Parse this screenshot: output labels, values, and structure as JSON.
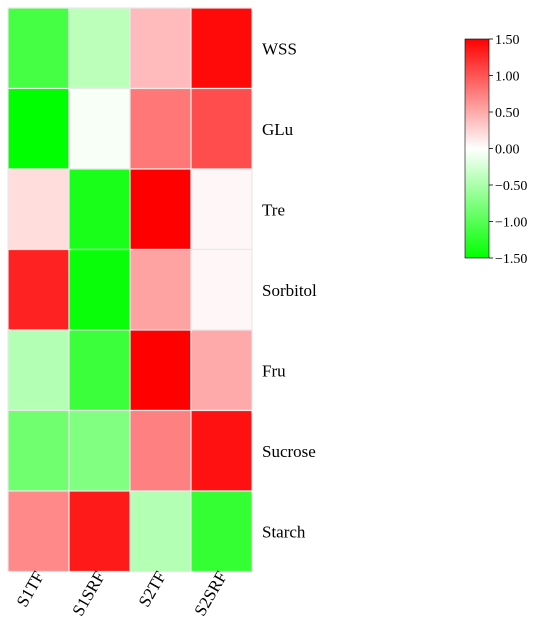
{
  "chart_data": {
    "type": "heatmap",
    "columns": [
      "S1TF",
      "S1SRF",
      "S2TF",
      "S2SRF"
    ],
    "rows": [
      "WSS",
      "GLu",
      "Tre",
      "Sorbitol",
      "Fru",
      "Sucrose",
      "Starch"
    ],
    "values": [
      [
        -1.1,
        -0.4,
        0.4,
        1.45
      ],
      [
        -1.5,
        -0.05,
        0.8,
        1.05
      ],
      [
        0.2,
        -1.35,
        1.5,
        0.05
      ],
      [
        1.3,
        -1.45,
        0.55,
        0.05
      ],
      [
        -0.45,
        -1.15,
        1.5,
        0.5
      ],
      [
        -0.85,
        -0.75,
        0.75,
        1.4
      ],
      [
        0.7,
        1.35,
        -0.45,
        -1.2
      ]
    ],
    "color_scale": {
      "min": -1.5,
      "mid": 0.0,
      "max": 1.5,
      "min_color": "#00ff00",
      "mid_color": "#ffffff",
      "max_color": "#ff0000"
    },
    "colorbar_ticks": [
      "1.50",
      "1.00",
      "0.50",
      "0.00",
      "−0.50",
      "−1.00",
      "−1.50"
    ],
    "colorbar_tick_values": [
      1.5,
      1.0,
      0.5,
      0.0,
      -0.5,
      -1.0,
      -1.5
    ],
    "title": "",
    "xlabel": "",
    "ylabel": ""
  }
}
